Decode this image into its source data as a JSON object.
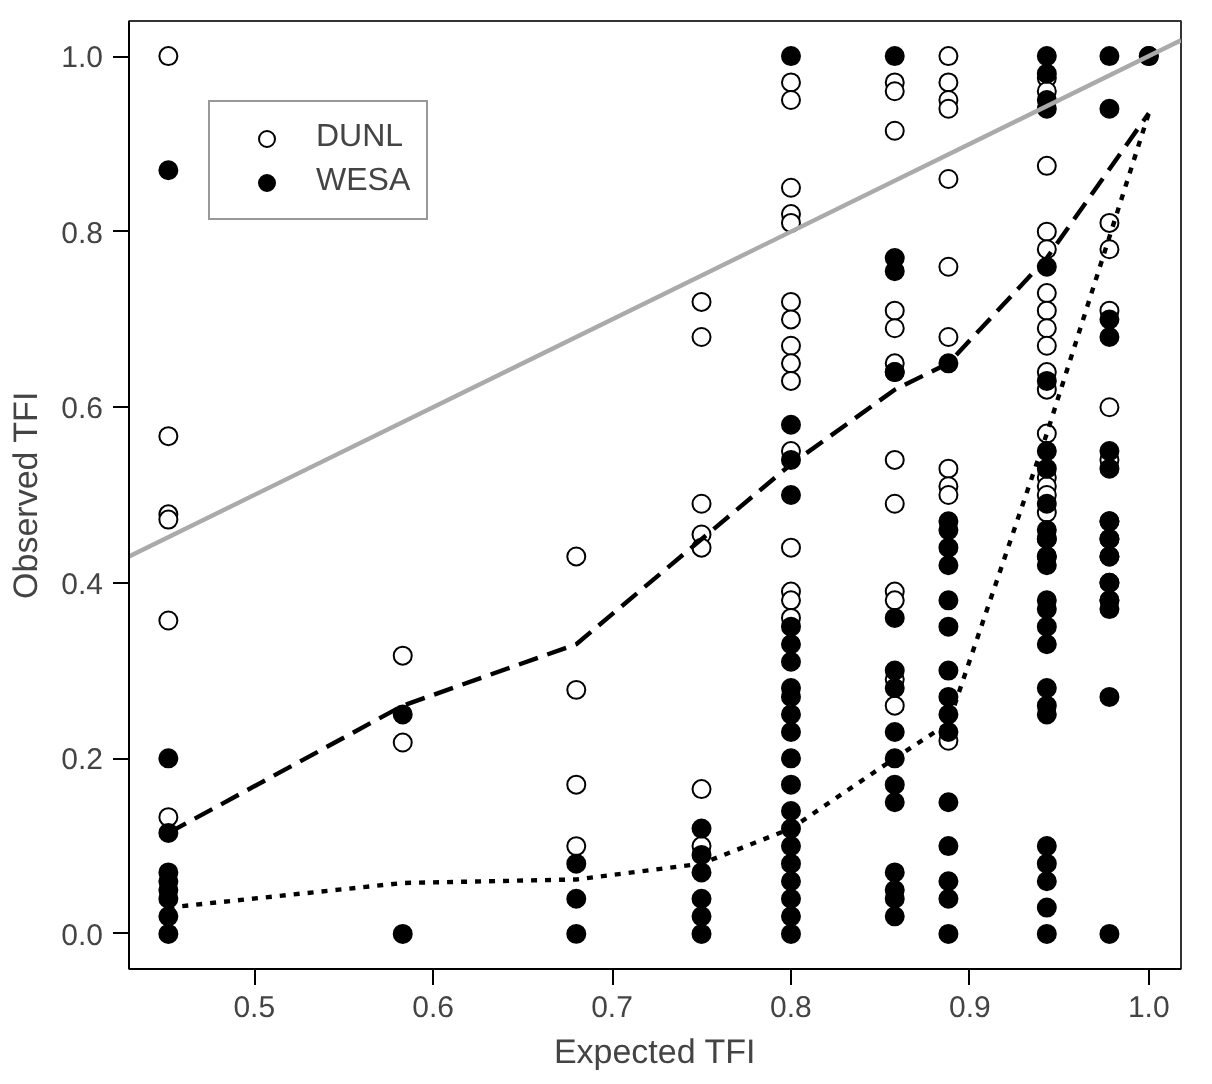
{
  "chart_data": {
    "type": "scatter",
    "xlabel": "Expected TFI",
    "ylabel": "Observed TFI",
    "xlim": [
      0.43,
      1.018
    ],
    "ylim": [
      -0.04,
      1.04
    ],
    "xticks": [
      0.5,
      0.6,
      0.7,
      0.8,
      0.9,
      {
        "value": 1.0,
        "label": "1.0"
      }
    ],
    "yticks": [
      {
        "value": 0,
        "label": "0.0"
      },
      0.2,
      0.4,
      0.6,
      0.8,
      {
        "value": 1.0,
        "label": "1.0"
      }
    ],
    "grid": false,
    "legend": "top left",
    "series": [
      {
        "name": "DUNL",
        "marker": "circle",
        "color": "#ffffff",
        "x": [
          0.452,
          0.452,
          0.452,
          0.452,
          0.452,
          0.452,
          0.583,
          0.583,
          0.68,
          0.68,
          0.68,
          0.68,
          0.75,
          0.75,
          0.75,
          0.75,
          0.75,
          0.75,
          0.75,
          0.8,
          0.8,
          0.8,
          0.8,
          0.8,
          0.8,
          0.8,
          0.8,
          0.8,
          0.8,
          0.8,
          0.8,
          0.8,
          0.8,
          0.8,
          0.858,
          0.858,
          0.858,
          0.858,
          0.858,
          0.858,
          0.858,
          0.858,
          0.858,
          0.858,
          0.858,
          0.858,
          0.858,
          0.888,
          0.888,
          0.888,
          0.888,
          0.888,
          0.888,
          0.888,
          0.888,
          0.888,
          0.888,
          0.888,
          0.943,
          0.943,
          0.943,
          0.943,
          0.943,
          0.943,
          0.943,
          0.943,
          0.943,
          0.943,
          0.943,
          0.943,
          0.943,
          0.943,
          0.943,
          0.943,
          0.943,
          0.943,
          0.978,
          0.978,
          0.978,
          0.978,
          0.978,
          0.978,
          0.978,
          0.978,
          0.978,
          0.978,
          1.0
        ],
        "values": [
          1.0,
          0.567,
          0.478,
          0.472,
          0.357,
          0.133,
          0.317,
          0.218,
          0.43,
          0.278,
          0.17,
          0.1,
          0.72,
          0.68,
          0.49,
          0.455,
          0.44,
          0.165,
          0.1,
          0.97,
          0.95,
          0.85,
          0.82,
          0.81,
          0.72,
          0.7,
          0.67,
          0.65,
          0.63,
          0.55,
          0.44,
          0.39,
          0.38,
          0.36,
          0.97,
          0.96,
          0.915,
          0.71,
          0.69,
          0.65,
          0.64,
          0.54,
          0.49,
          0.39,
          0.38,
          0.29,
          0.26,
          1.0,
          0.97,
          0.95,
          0.94,
          0.86,
          0.76,
          0.68,
          0.53,
          0.51,
          0.5,
          0.22,
          0.975,
          0.96,
          0.875,
          0.8,
          0.78,
          0.73,
          0.71,
          0.69,
          0.67,
          0.64,
          0.62,
          0.57,
          0.52,
          0.51,
          0.5,
          0.48,
          0.45,
          0.43,
          0.81,
          0.78,
          0.71,
          0.6,
          0.54,
          0.47,
          0.45,
          0.43,
          0.4,
          0.38,
          1.0
        ]
      },
      {
        "name": "WESA",
        "marker": "circle",
        "color": "#000000",
        "x": [
          0.452,
          0.452,
          0.452,
          0.452,
          0.452,
          0.452,
          0.452,
          0.452,
          0.452,
          0.583,
          0.583,
          0.68,
          0.68,
          0.68,
          0.75,
          0.75,
          0.75,
          0.75,
          0.75,
          0.75,
          0.8,
          0.8,
          0.8,
          0.8,
          0.8,
          0.8,
          0.8,
          0.8,
          0.8,
          0.8,
          0.8,
          0.8,
          0.8,
          0.8,
          0.8,
          0.8,
          0.8,
          0.8,
          0.8,
          0.8,
          0.8,
          0.858,
          0.858,
          0.858,
          0.858,
          0.858,
          0.858,
          0.858,
          0.858,
          0.858,
          0.858,
          0.858,
          0.858,
          0.858,
          0.858,
          0.858,
          0.888,
          0.888,
          0.888,
          0.888,
          0.888,
          0.888,
          0.888,
          0.888,
          0.888,
          0.888,
          0.888,
          0.888,
          0.888,
          0.888,
          0.888,
          0.888,
          0.943,
          0.943,
          0.943,
          0.943,
          0.943,
          0.943,
          0.943,
          0.943,
          0.943,
          0.943,
          0.943,
          0.943,
          0.943,
          0.943,
          0.943,
          0.943,
          0.943,
          0.943,
          0.943,
          0.943,
          0.943,
          0.943,
          0.943,
          0.943,
          0.943,
          0.978,
          0.978,
          0.978,
          0.978,
          0.978,
          0.978,
          0.978,
          0.978,
          0.978,
          0.978,
          0.978,
          0.978,
          0.978,
          0.978,
          1.0
        ],
        "values": [
          0.87,
          0.2,
          0.115,
          0.07,
          0.06,
          0.05,
          0.04,
          0.02,
          0.0,
          0.25,
          0.0,
          0.08,
          0.04,
          0.0,
          0.12,
          0.09,
          0.07,
          0.04,
          0.02,
          0.0,
          1.0,
          0.58,
          0.54,
          0.5,
          0.35,
          0.33,
          0.31,
          0.28,
          0.27,
          0.25,
          0.23,
          0.2,
          0.17,
          0.14,
          0.12,
          0.1,
          0.08,
          0.06,
          0.04,
          0.02,
          0.0,
          1.0,
          0.77,
          0.755,
          0.64,
          0.36,
          0.3,
          0.28,
          0.23,
          0.2,
          0.17,
          0.15,
          0.07,
          0.05,
          0.04,
          0.02,
          0.65,
          0.47,
          0.46,
          0.44,
          0.42,
          0.38,
          0.35,
          0.3,
          0.27,
          0.25,
          0.23,
          0.15,
          0.1,
          0.06,
          0.04,
          0.0,
          1.0,
          0.98,
          0.95,
          0.94,
          0.76,
          0.63,
          0.55,
          0.53,
          0.49,
          0.46,
          0.45,
          0.43,
          0.42,
          0.38,
          0.37,
          0.35,
          0.33,
          0.28,
          0.26,
          0.25,
          0.1,
          0.08,
          0.06,
          0.03,
          0.0,
          1.0,
          0.94,
          0.7,
          0.68,
          0.55,
          0.53,
          0.47,
          0.45,
          0.43,
          0.4,
          0.38,
          0.37,
          0.27,
          0.0,
          1.0
        ]
      },
      {
        "type": "line",
        "marker": "none",
        "color": "#000000",
        "line_style": "dashed",
        "x": [
          0.452,
          0.583,
          0.68,
          0.8,
          0.858,
          0.888,
          0.943,
          1.0
        ],
        "values": [
          0.115,
          0.26,
          0.33,
          0.535,
          0.62,
          0.65,
          0.77,
          0.935
        ]
      },
      {
        "type": "line",
        "marker": "none",
        "color": "#000000",
        "line_style": "dotted",
        "x": [
          0.452,
          0.583,
          0.68,
          0.75,
          0.8,
          0.858,
          0.888,
          0.943,
          1.0
        ],
        "values": [
          0.03,
          0.058,
          0.062,
          0.08,
          0.12,
          0.2,
          0.24,
          0.57,
          0.935
        ]
      },
      {
        "type": "line",
        "marker": "none",
        "color": "#aaaaaa",
        "line_style": "solid",
        "x": [
          0.43,
          1.018
        ],
        "values": [
          0.43,
          1.018
        ]
      }
    ]
  }
}
